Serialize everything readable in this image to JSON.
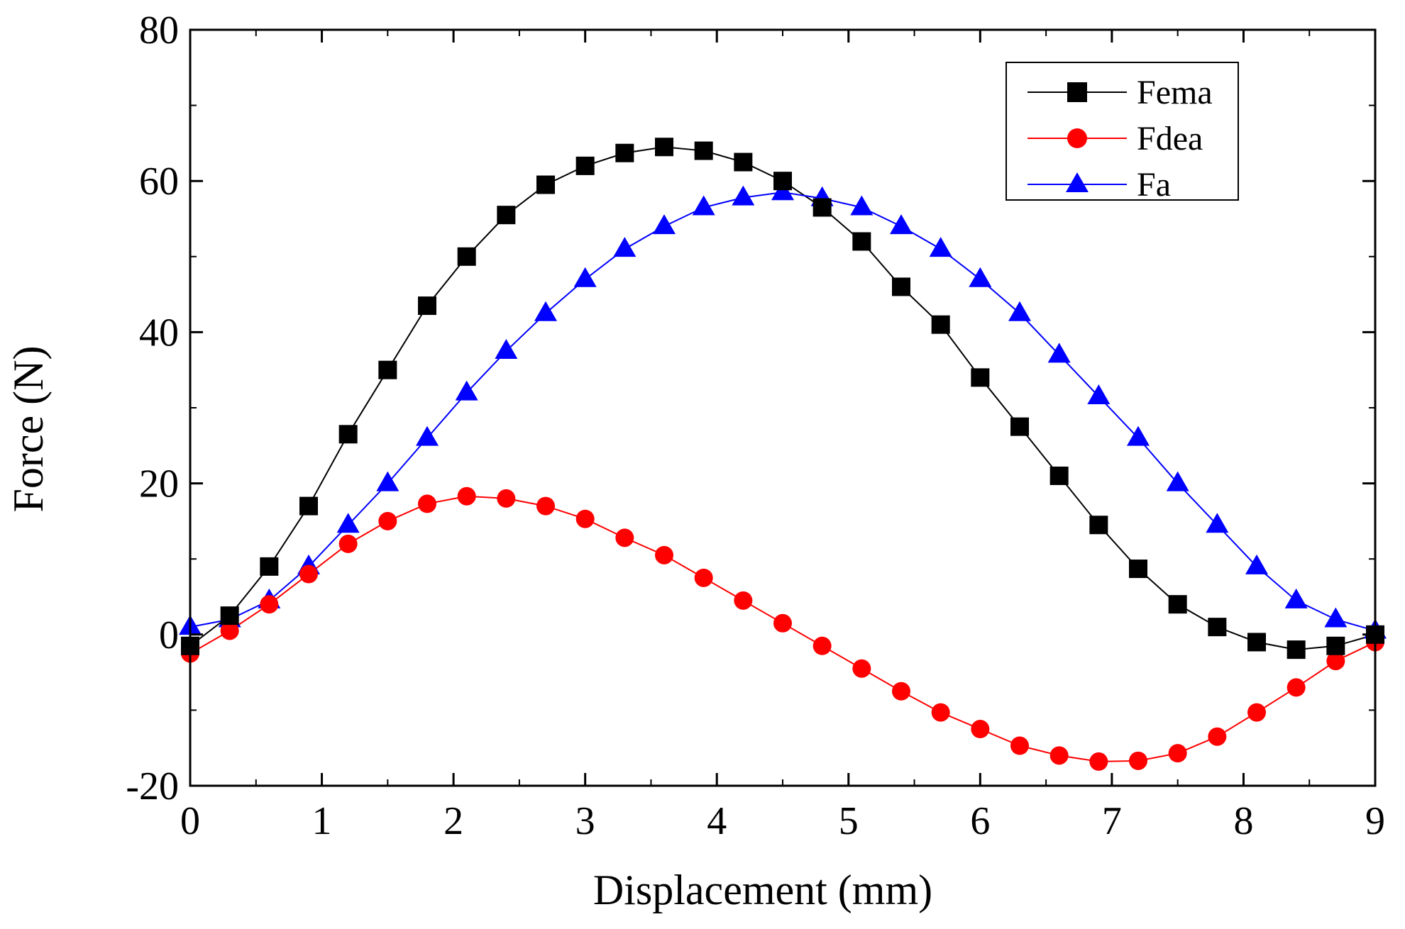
{
  "chart_data": {
    "type": "line",
    "title": "",
    "xlabel": "Displacement (mm)",
    "ylabel": "Force (N)",
    "xlim": [
      0,
      9
    ],
    "ylim": [
      -20,
      80
    ],
    "xticks": [
      0,
      1,
      2,
      3,
      4,
      5,
      6,
      7,
      8,
      9
    ],
    "yticks": [
      -20,
      0,
      20,
      40,
      60,
      80
    ],
    "xtick_labels": [
      "0",
      "1",
      "2",
      "3",
      "4",
      "5",
      "6",
      "7",
      "8",
      "9"
    ],
    "ytick_labels": [
      "-20",
      "0",
      "20",
      "40",
      "60",
      "80"
    ],
    "grid": false,
    "legend_position": "top-right",
    "x": [
      0,
      0.3,
      0.6,
      0.9,
      1.2,
      1.5,
      1.8,
      2.1,
      2.4,
      2.7,
      3.0,
      3.3,
      3.6,
      3.9,
      4.2,
      4.5,
      4.8,
      5.1,
      5.4,
      5.7,
      6.0,
      6.3,
      6.6,
      6.9,
      7.2,
      7.5,
      7.8,
      8.1,
      8.4,
      8.7,
      9.0
    ],
    "series": [
      {
        "name": "Fema",
        "color": "#000000",
        "marker": "square",
        "values": [
          -1.5,
          2.5,
          9,
          17,
          26.5,
          35,
          43.5,
          50,
          55.5,
          59.5,
          62,
          63.7,
          64.5,
          64,
          62.5,
          60,
          56.5,
          52,
          46,
          41,
          34,
          27.5,
          21,
          14.5,
          8.7,
          4,
          1,
          -1,
          -2,
          -1.5,
          0
        ]
      },
      {
        "name": "Fdea",
        "color": "#ff0000",
        "marker": "circle",
        "values": [
          -2.5,
          0.5,
          4,
          8,
          12,
          15,
          17.3,
          18.3,
          18,
          17,
          15.3,
          12.8,
          10.5,
          7.5,
          4.5,
          1.5,
          -1.5,
          -4.5,
          -7.5,
          -10.3,
          -12.5,
          -14.7,
          -16,
          -16.8,
          -16.7,
          -15.7,
          -13.5,
          -10.3,
          -7,
          -3.5,
          -1
        ]
      },
      {
        "name": "Fa",
        "color": "#0000ff",
        "marker": "triangle",
        "values": [
          1,
          2,
          4.5,
          9,
          14.5,
          20,
          26,
          32,
          37.5,
          42.5,
          47,
          51,
          54,
          56.5,
          57.8,
          58.5,
          57.7,
          56.5,
          54,
          51,
          47,
          42.5,
          37,
          31.5,
          26,
          20,
          14.5,
          9,
          4.5,
          2,
          0.5
        ]
      }
    ]
  }
}
